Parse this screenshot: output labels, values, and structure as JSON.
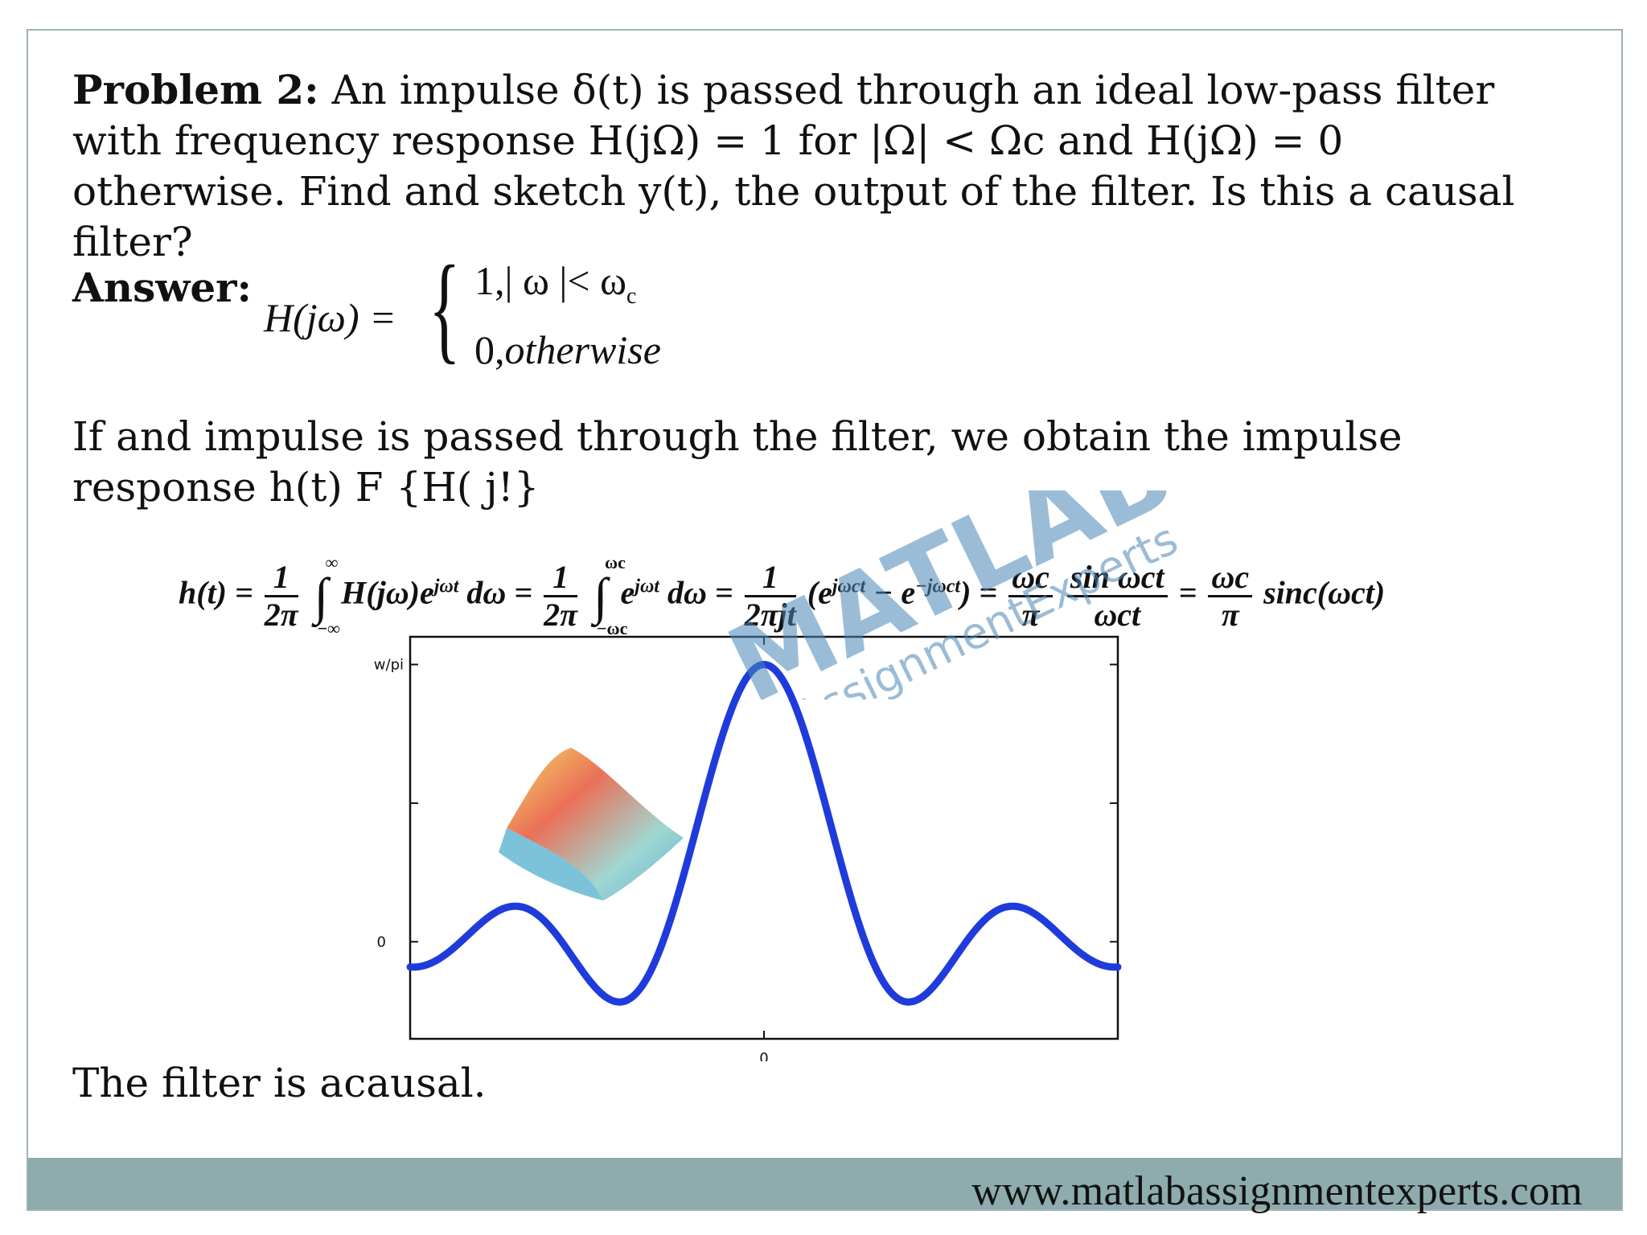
{
  "problem": {
    "label": "Problem 2:",
    "text": " An impulse δ(t) is passed through an ideal low-pass filter with frequency response H(jΩ) = 1 for |Ω| < Ωc and H(jΩ) = 0 otherwise. Find and sketch y(t), the output of the filter. Is this a causal filter?"
  },
  "answer": {
    "label": "Answer:",
    "piecewise_lhs": "H(jω) =",
    "case_one": "1,| ω |< ω",
    "case_one_sub": "c",
    "case_two_num": "0,",
    "case_two_word": "otherwise"
  },
  "impulse_text": "If and impulse is passed through the filter, we obtain the impulse response h(t) F {H( j!}",
  "equation": {
    "lhs": "h(t) =",
    "frac1_num": "1",
    "frac1_den": "2π",
    "int1_up": "∞",
    "int1_lo": "−∞",
    "integrand1": "H(jω)e",
    "exp1": "jωt",
    "dw1": " dω =",
    "frac2_num": "1",
    "frac2_den": "2π",
    "int2_up": "ωc",
    "int2_lo": "−ωc",
    "integrand2": "e",
    "exp2": "jωt",
    "dw2": " dω =",
    "frac3_num": "1",
    "frac3_den": "2πjt",
    "paren": "(e",
    "exp3": "jωct",
    "minus": " − e",
    "exp4": "−jωct",
    "close": ") =",
    "frac4_num": "ωc",
    "frac4_den": "π",
    "frac5_num": "sin ωct",
    "frac5_den": "ωct",
    "eq2": " =",
    "frac6_num": "ωc",
    "frac6_den": "π",
    "sinc": "sinc(ωct)"
  },
  "chart_data": {
    "type": "line",
    "title": "",
    "xlabel": "",
    "ylabel": "",
    "x_tick_labels": [
      "0"
    ],
    "y_tick_labels": [
      "0",
      "w/pi"
    ],
    "ylim": [
      -0.35,
      1.1
    ],
    "xlim": [
      -3.5,
      3.5
    ],
    "series": [
      {
        "color": "#1f3bdc",
        "function": "sinc",
        "x": [
          -3.5,
          -3.0,
          -2.5,
          -2.0,
          -1.5,
          -1.0,
          -0.5,
          0,
          0.5,
          1.0,
          1.5,
          2.0,
          2.5,
          3.0,
          3.5
        ],
        "y": [
          0.0,
          -0.06,
          0.13,
          0.0,
          -0.21,
          0.0,
          0.64,
          1.0,
          0.64,
          0.0,
          -0.21,
          0.0,
          0.13,
          -0.06,
          0.0
        ]
      }
    ],
    "grid": false
  },
  "conclusion": "The filter is acausal.",
  "footer": {
    "url": "www.matlabassignmentexperts.com"
  },
  "watermark": {
    "brand": "MATLAB",
    "tagline": "AssignmentExperts"
  },
  "colors": {
    "footer_bar": "#8eabad",
    "frame_border": "#9fb1b4",
    "curve": "#1f3bdc",
    "watermark": "#4a86b8"
  }
}
